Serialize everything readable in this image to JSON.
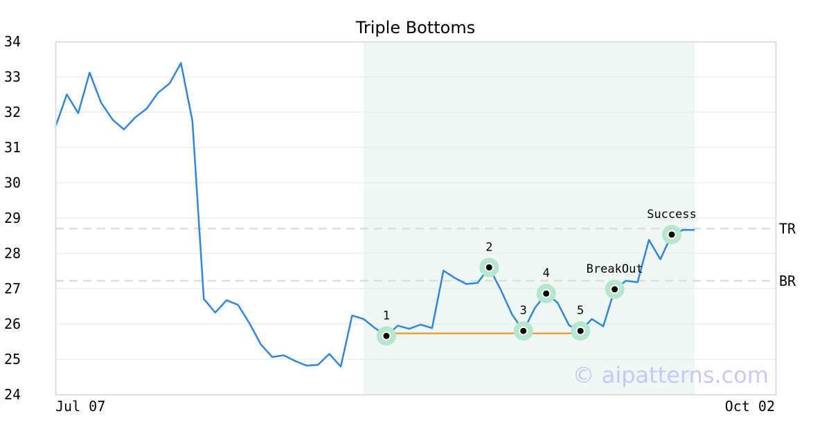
{
  "chart_data": {
    "type": "line",
    "title": "Triple Bottoms",
    "ylim": [
      24,
      34
    ],
    "yticks": [
      "24",
      "25",
      "26",
      "27",
      "28",
      "29",
      "30",
      "31",
      "32",
      "33",
      "34"
    ],
    "x_start_label": "Jul 07",
    "x_end_label": "Oct 02",
    "grid": true,
    "series": [
      {
        "color": "#2e86de",
        "values": [
          31.58,
          32.5,
          31.97,
          33.12,
          32.27,
          31.79,
          31.51,
          31.85,
          32.1,
          32.55,
          32.81,
          33.39,
          31.76,
          26.71,
          26.32,
          26.67,
          26.54,
          26.02,
          25.42,
          25.06,
          25.11,
          24.95,
          24.82,
          24.84,
          25.15,
          24.79,
          26.24,
          26.14,
          25.88,
          25.66,
          25.95,
          25.86,
          25.98,
          25.88,
          27.51,
          27.3,
          27.13,
          27.16,
          27.6,
          26.98,
          26.27,
          25.8,
          26.45,
          26.86,
          26.6,
          25.96,
          25.8,
          26.14,
          25.93,
          26.98,
          27.22,
          27.18,
          28.38,
          27.83,
          28.53,
          28.66,
          28.66
        ]
      }
    ],
    "pattern_region": {
      "start_index": 27,
      "end_index": 56,
      "color": "#eef7f3"
    },
    "support_line": {
      "start_index": 29,
      "end_index": 46,
      "value": 25.73,
      "color": "#f5a142"
    },
    "reference_lines": [
      {
        "label": "TR",
        "value": 28.7
      },
      {
        "label": "BR",
        "value": 27.22
      }
    ],
    "annotations": [
      {
        "label": "1",
        "index": 29,
        "value": 25.66
      },
      {
        "label": "2",
        "index": 38,
        "value": 27.6
      },
      {
        "label": "3",
        "index": 41,
        "value": 25.8
      },
      {
        "label": "4",
        "index": 43,
        "value": 26.86
      },
      {
        "label": "5",
        "index": 46,
        "value": 25.8
      },
      {
        "label": "BreakOut",
        "index": 49,
        "value": 26.98
      },
      {
        "label": "Success",
        "index": 54,
        "value": 28.53
      }
    ],
    "marker_color": "#b7e6cf",
    "watermark": "© aipatterns.com"
  }
}
